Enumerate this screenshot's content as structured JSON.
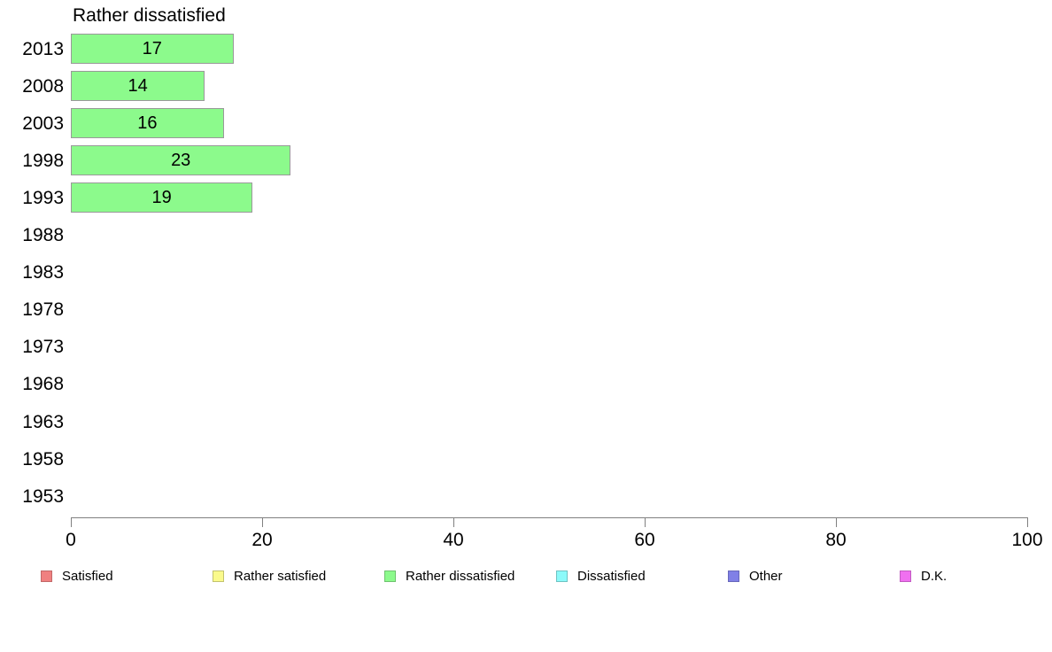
{
  "chart_data": {
    "type": "bar",
    "orientation": "horizontal",
    "title": "Rather dissatisfied",
    "categories": [
      "2013",
      "2008",
      "2003",
      "1998",
      "1993",
      "1988",
      "1983",
      "1978",
      "1973",
      "1968",
      "1963",
      "1958",
      "1953"
    ],
    "values": [
      17,
      14,
      16,
      23,
      19,
      null,
      null,
      null,
      null,
      null,
      null,
      null,
      null
    ],
    "xlim": [
      0,
      100
    ],
    "x_ticks": [
      0,
      20,
      40,
      60,
      80,
      100
    ],
    "grid": false,
    "bar_fill_color": "#8cfa8c",
    "bar_border_color": "#999999",
    "axis_color": "#808080",
    "legend_position": "bottom",
    "legend": [
      {
        "label": "Satisfied",
        "color": "#f08080",
        "border_color": "#c26868"
      },
      {
        "label": "Rather satisfied",
        "color": "#fafa8c",
        "border_color": "#c2c26f"
      },
      {
        "label": "Rather dissatisfied",
        "color": "#8cfa8c",
        "border_color": "#6fc26f"
      },
      {
        "label": "Dissatisfied",
        "color": "#8cfafa",
        "border_color": "#6fc2c2"
      },
      {
        "label": "Other",
        "color": "#8080e6",
        "border_color": "#6868bb"
      },
      {
        "label": "D.K.",
        "color": "#f070f0",
        "border_color": "#c25ac2"
      }
    ]
  }
}
